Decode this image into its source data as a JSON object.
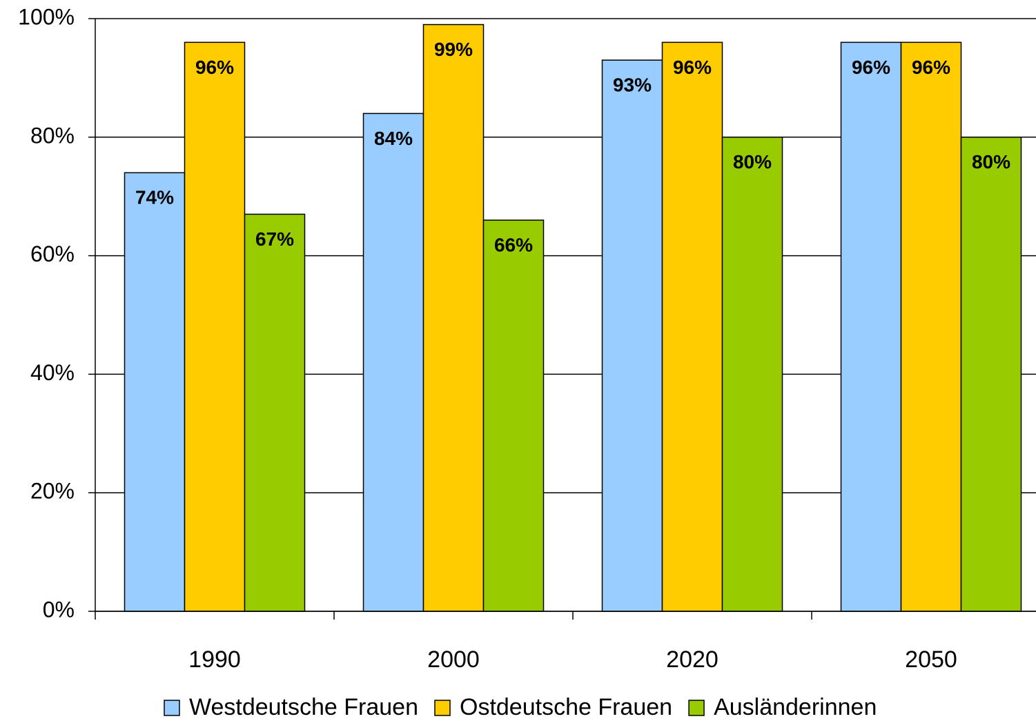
{
  "chart_data": {
    "type": "bar",
    "categories": [
      "1990",
      "2000",
      "2020",
      "2050"
    ],
    "series": [
      {
        "name": "Westdeutsche Frauen",
        "color": "#99ccff",
        "values": [
          74,
          84,
          93,
          96
        ],
        "value_labels": [
          "74%",
          "84%",
          "93%",
          "96%"
        ]
      },
      {
        "name": "Ostdeutsche Frauen",
        "color": "#ffcc00",
        "values": [
          96,
          99,
          96,
          96
        ],
        "value_labels": [
          "96%",
          "99%",
          "96%",
          "96%"
        ]
      },
      {
        "name": "Ausländerinnen",
        "color": "#99cc00",
        "values": [
          67,
          66,
          80,
          80
        ],
        "value_labels": [
          "67%",
          "66%",
          "80%",
          "80%"
        ]
      }
    ],
    "ylim": [
      0,
      100
    ],
    "yticks": [
      {
        "value": 0,
        "label": "0%"
      },
      {
        "value": 20,
        "label": "20%"
      },
      {
        "value": 40,
        "label": "40%"
      },
      {
        "value": 60,
        "label": "60%"
      },
      {
        "value": 80,
        "label": "80%"
      },
      {
        "value": 100,
        "label": "100%"
      }
    ],
    "grid": true,
    "legend": "bottom"
  }
}
